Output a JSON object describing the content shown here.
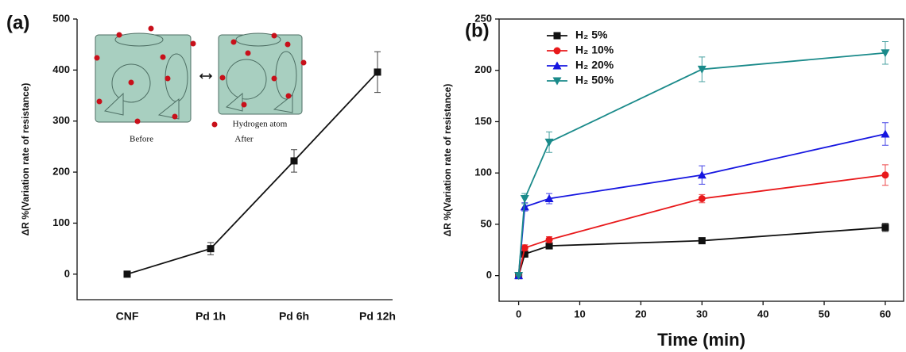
{
  "chart_data": [
    {
      "type": "line",
      "panel": "(a)",
      "ylabel": "ΔR %(Variation rate of resistance)",
      "categories": [
        "CNF",
        "Pd 1h",
        "Pd 6h",
        "Pd 12h"
      ],
      "series": [
        {
          "name": null,
          "color": "#111111",
          "marker": "square",
          "values": [
            0,
            50,
            222,
            396
          ],
          "errors": [
            0,
            12,
            22,
            40
          ]
        }
      ],
      "ylim": [
        -50,
        500
      ],
      "yticks": [
        0,
        100,
        200,
        300,
        400,
        500
      ],
      "annotations": [
        "Before",
        "After",
        "Hydrogen atom"
      ]
    },
    {
      "type": "line",
      "panel": "(b)",
      "ylabel": "ΔR %(Variation rate of resistance)",
      "xlabel": "Time (min)",
      "x": [
        0,
        1,
        5,
        30,
        60
      ],
      "series": [
        {
          "name": "H₂ 5%",
          "color": "#111111",
          "marker": "square",
          "values": [
            0,
            21,
            29,
            34,
            47
          ],
          "errors": [
            0,
            2,
            2,
            2,
            4
          ]
        },
        {
          "name": "H₂ 10%",
          "color": "#e8191b",
          "marker": "circle",
          "values": [
            0,
            27,
            35,
            75,
            98
          ],
          "errors": [
            0,
            3,
            3,
            4,
            10
          ]
        },
        {
          "name": "H₂ 20%",
          "color": "#1616e0",
          "marker": "triangle-up",
          "values": [
            0,
            67,
            75,
            98,
            138
          ],
          "errors": [
            0,
            4,
            5,
            9,
            11
          ]
        },
        {
          "name": "H₂ 50%",
          "color": "#1a8a8a",
          "marker": "triangle-down",
          "values": [
            0,
            75,
            130,
            201,
            217
          ],
          "errors": [
            0,
            5,
            10,
            12,
            11
          ]
        }
      ],
      "xlim": [
        -3.2,
        63
      ],
      "xticks": [
        0,
        10,
        20,
        30,
        40,
        50,
        60
      ],
      "ylim": [
        -25,
        250
      ],
      "yticks": [
        0,
        50,
        100,
        150,
        200,
        250
      ],
      "legend": "upper left"
    }
  ]
}
